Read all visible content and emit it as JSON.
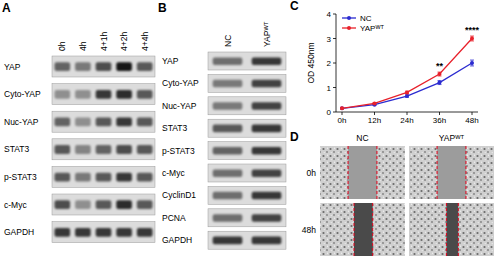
{
  "panel_labels": [
    "A",
    "B",
    "C",
    "D"
  ],
  "blot_a": {
    "lanes": [
      "0h",
      "4h",
      "4+1h",
      "4+2h",
      "4+4h"
    ],
    "rows": [
      {
        "name": "YAP",
        "bands": [
          0.55,
          0.45,
          0.65,
          0.9,
          0.6
        ]
      },
      {
        "name": "Cyto-YAP",
        "bands": [
          0.35,
          0.35,
          0.75,
          0.8,
          0.6
        ]
      },
      {
        "name": "Nuc-YAP",
        "bands": [
          0.55,
          0.35,
          0.6,
          0.75,
          0.6
        ]
      },
      {
        "name": "STAT3",
        "bands": [
          0.6,
          0.4,
          0.55,
          0.65,
          0.6
        ]
      },
      {
        "name": "p-STAT3",
        "bands": [
          0.6,
          0.45,
          0.6,
          0.75,
          0.6
        ]
      },
      {
        "name": "c-Myc",
        "bands": [
          0.65,
          0.35,
          0.6,
          0.8,
          0.6
        ]
      },
      {
        "name": "GAPDH",
        "bands": [
          0.75,
          0.75,
          0.75,
          0.75,
          0.75
        ]
      }
    ]
  },
  "blot_b": {
    "lanes": [
      "NC",
      "YAPᵂᵀ"
    ],
    "rows": [
      {
        "name": "YAP",
        "bands": [
          0.5,
          0.75
        ]
      },
      {
        "name": "Cyto-YAP",
        "bands": [
          0.45,
          0.7
        ]
      },
      {
        "name": "Nuc-YAP",
        "bands": [
          0.45,
          0.7
        ]
      },
      {
        "name": "STAT3",
        "bands": [
          0.6,
          0.75
        ]
      },
      {
        "name": "p-STAT3",
        "bands": [
          0.55,
          0.75
        ]
      },
      {
        "name": "c-Myc",
        "bands": [
          0.5,
          0.7
        ]
      },
      {
        "name": "CyclinD1",
        "bands": [
          0.5,
          0.75
        ]
      },
      {
        "name": "PCNA",
        "bands": [
          0.5,
          0.7
        ]
      },
      {
        "name": "GAPDH",
        "bands": [
          0.75,
          0.75
        ]
      }
    ]
  },
  "chart_data": {
    "type": "line",
    "y_label": "OD 450nm",
    "categories": [
      "0h",
      "12h",
      "24h",
      "36h",
      "48h"
    ],
    "series": [
      {
        "name": "NC",
        "color": "#2b2bd0",
        "marker": "circle",
        "values": [
          0.15,
          0.3,
          0.65,
          1.2,
          2.0
        ],
        "errors": [
          0.02,
          0.03,
          0.05,
          0.08,
          0.12
        ]
      },
      {
        "name": "YAPᵂᵀ",
        "color": "#e8212b",
        "marker": "circle",
        "values": [
          0.15,
          0.35,
          0.8,
          1.55,
          3.0
        ],
        "errors": [
          0.02,
          0.03,
          0.05,
          0.08,
          0.1
        ]
      }
    ],
    "ylim": [
      0,
      4
    ],
    "yticks": [
      0,
      1,
      2,
      3,
      4
    ],
    "grid": false,
    "legend": "upper left",
    "annotations": [
      {
        "x": "36h",
        "text": "**"
      },
      {
        "x": "48h",
        "text": "****"
      }
    ]
  },
  "wound": {
    "columns": [
      "NC",
      "YAPᵂᵀ"
    ],
    "rows": [
      "0h",
      "48h"
    ]
  }
}
